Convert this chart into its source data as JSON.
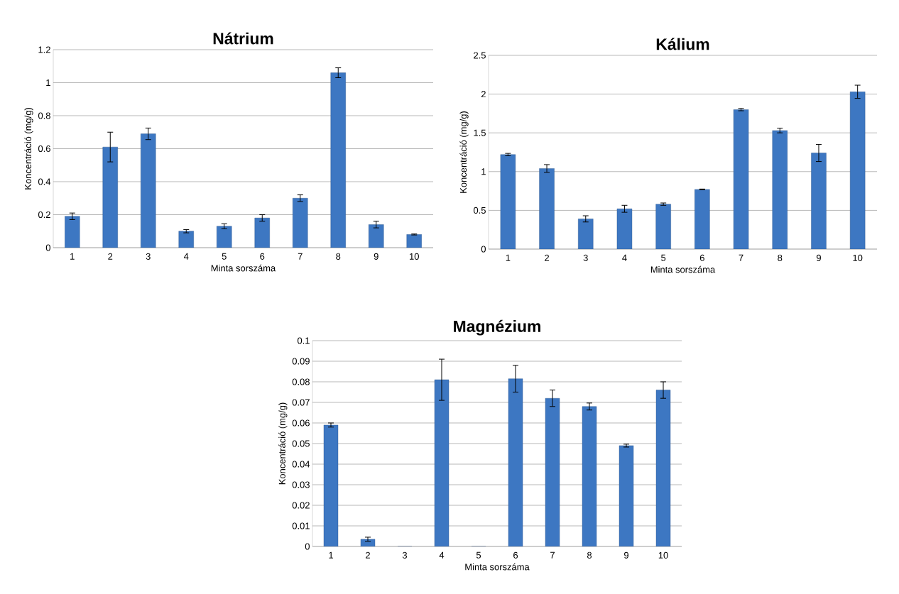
{
  "chart_data": [
    {
      "type": "bar",
      "title": "Nátrium",
      "xlabel": "Minta sorszáma",
      "ylabel": "Koncentráció (mg/g)",
      "categories": [
        "1",
        "2",
        "3",
        "4",
        "5",
        "6",
        "7",
        "8",
        "9",
        "10"
      ],
      "values": [
        0.19,
        0.61,
        0.69,
        0.1,
        0.13,
        0.18,
        0.3,
        1.06,
        0.14,
        0.08
      ],
      "errors": [
        0.02,
        [
          0.52,
          0.7
        ],
        0.035,
        0.01,
        0.015,
        0.02,
        0.02,
        0.03,
        0.02,
        0.003
      ],
      "color": "#3d77c2",
      "ylim": [
        0,
        1.2
      ],
      "yticks": [
        0,
        0.2,
        0.4,
        0.6,
        0.8,
        1,
        1.2
      ],
      "grid": "y"
    },
    {
      "type": "bar",
      "title": "Kálium",
      "xlabel": "Minta sorszáma",
      "ylabel": "Koncentráció (mg/g)",
      "categories": [
        "1",
        "2",
        "3",
        "4",
        "5",
        "6",
        "7",
        "8",
        "9",
        "10"
      ],
      "values": [
        1.22,
        1.04,
        0.39,
        0.52,
        0.58,
        0.77,
        1.8,
        1.53,
        1.24,
        2.03
      ],
      "errors": [
        0.015,
        0.05,
        0.04,
        0.045,
        0.015,
        0.005,
        0.015,
        0.03,
        0.11,
        0.085
      ],
      "color": "#3d77c2",
      "ylim": [
        0,
        2.5
      ],
      "yticks": [
        0,
        0.5,
        1,
        1.5,
        2,
        2.5
      ],
      "grid": "y"
    },
    {
      "type": "bar",
      "title": "Magnézium",
      "xlabel": "Minta sorszáma",
      "ylabel": "Koncentráció (mg/g)",
      "categories": [
        "1",
        "2",
        "3",
        "4",
        "5",
        "6",
        "7",
        "8",
        "9",
        "10"
      ],
      "values": [
        0.059,
        0.0035,
        0,
        0.081,
        0,
        0.0815,
        0.072,
        0.068,
        0.049,
        0.076
      ],
      "errors": [
        0.001,
        0.001,
        null,
        0.01,
        null,
        0.0065,
        0.004,
        0.0017,
        0.0007,
        0.004
      ],
      "color": "#3d77c2",
      "ylim": [
        0,
        0.1
      ],
      "yticks": [
        0,
        0.01,
        0.02,
        0.03,
        0.04,
        0.05,
        0.06,
        0.07,
        0.08,
        0.09,
        0.1
      ],
      "grid": "y"
    }
  ]
}
